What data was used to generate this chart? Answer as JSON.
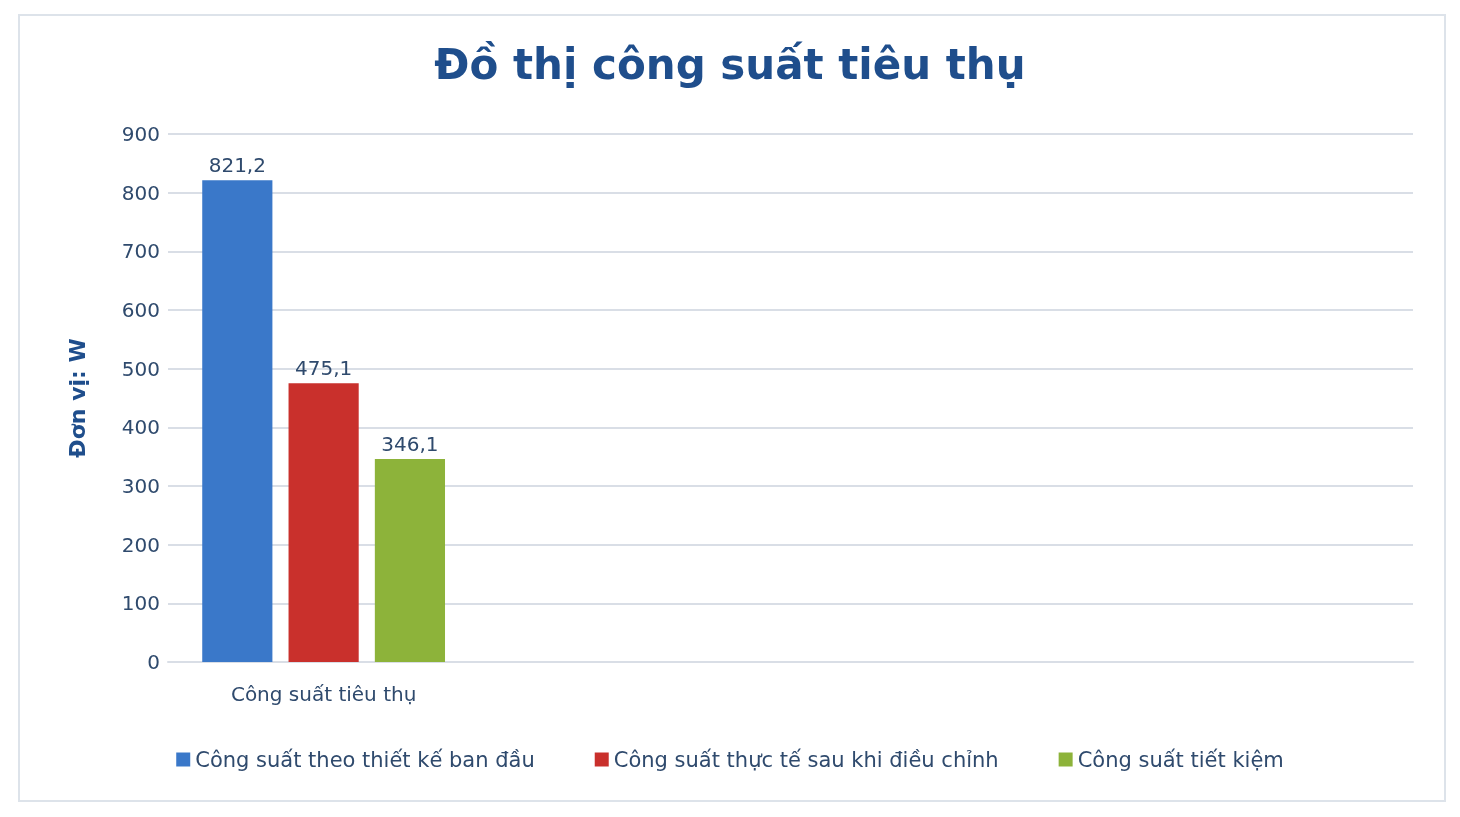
{
  "chart_data": {
    "type": "bar",
    "title": "Đồ thị công suất tiêu thụ",
    "ylabel": "Đơn vị: W",
    "categories": [
      "Công suất tiêu thụ",
      null,
      null,
      null
    ],
    "series": [
      {
        "name": "Công suất theo thiết kế ban đầu",
        "color": "#3a78c9",
        "values": [
          821.2,
          null,
          null,
          null
        ],
        "value_labels": [
          "821,2",
          null,
          null,
          null
        ]
      },
      {
        "name": "Công suất thực tế sau khi điều chỉnh",
        "color": "#c9302c",
        "values": [
          475.1,
          null,
          null,
          null
        ],
        "value_labels": [
          "475,1",
          null,
          null,
          null
        ]
      },
      {
        "name": "Công suất tiết kiệm",
        "color": "#8db33a",
        "values": [
          346.1,
          null,
          null,
          null
        ],
        "value_labels": [
          "346,1",
          null,
          null,
          null
        ]
      }
    ],
    "ylim": [
      0,
      900
    ],
    "yticks": [
      0,
      100,
      200,
      300,
      400,
      500,
      600,
      700,
      800,
      900
    ],
    "grid": "y",
    "legend": "bottom"
  }
}
